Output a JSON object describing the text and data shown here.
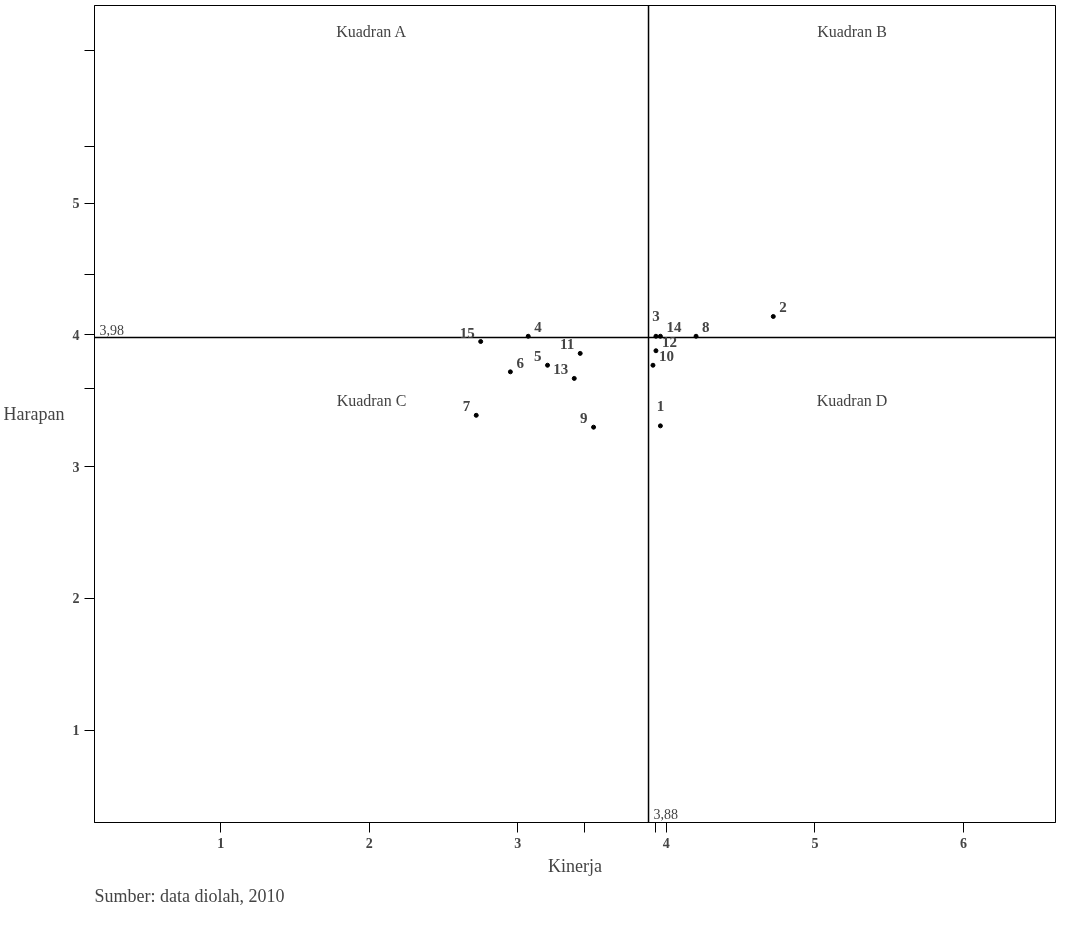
{
  "chart_data": {
    "type": "scatter",
    "xlabel": "Kinerja",
    "ylabel": "Harapan",
    "x": [
      3.96,
      4.72,
      3.93,
      3.07,
      3.2,
      2.95,
      2.72,
      4.2,
      3.51,
      3.91,
      3.42,
      3.93,
      3.38,
      3.96,
      2.75
    ],
    "series": [
      {
        "color": "#000000",
        "values": [
          3.31,
          4.14,
          3.99,
          3.99,
          3.77,
          3.72,
          3.39,
          3.99,
          3.3,
          3.77,
          3.86,
          3.88,
          3.67,
          3.99,
          3.95
        ]
      }
    ],
    "marker": "circle",
    "xlim": [
      0.15,
      6.62
    ],
    "ylim": [
      0.3,
      6.5
    ],
    "xticks": [
      1,
      2,
      3,
      {
        "value": 3.45,
        "label": null
      },
      {
        "value": 3.93,
        "label": null
      },
      4,
      5,
      6
    ],
    "yticks": [
      1,
      2,
      3,
      {
        "value": 3.595,
        "label": null
      },
      4,
      {
        "value": 4.46,
        "label": null
      },
      5,
      {
        "value": 5.43,
        "label": null
      },
      {
        "value": 6.16,
        "label": null
      }
    ],
    "grid": false,
    "ref_lines": [
      {
        "axis": "x",
        "value": 3.88,
        "label": "3,88"
      },
      {
        "axis": "y",
        "value": 3.98,
        "label": "3,98"
      }
    ],
    "annotations": [
      "Kuadran A",
      "Kuadran B",
      "Kuadran C",
      "Kuadran D",
      "Sumber: data diolah, 2010",
      {
        "text": "1",
        "x": 3.96,
        "y": 3.31
      },
      {
        "text": "2",
        "x": 4.72,
        "y": 4.14
      },
      {
        "text": "3",
        "x": 3.93,
        "y": 3.99
      },
      {
        "text": "4",
        "x": 3.07,
        "y": 3.99
      },
      {
        "text": "5",
        "x": 3.2,
        "y": 3.77
      },
      {
        "text": "6",
        "x": 2.95,
        "y": 3.72
      },
      {
        "text": "7",
        "x": 2.72,
        "y": 3.39
      },
      {
        "text": "8",
        "x": 4.2,
        "y": 3.99
      },
      {
        "text": "9",
        "x": 3.51,
        "y": 3.3
      },
      {
        "text": "10",
        "x": 3.91,
        "y": 3.77
      },
      {
        "text": "11",
        "x": 3.42,
        "y": 3.86
      },
      {
        "text": "12",
        "x": 3.93,
        "y": 3.88
      },
      {
        "text": "13",
        "x": 3.38,
        "y": 3.67
      },
      {
        "text": "14",
        "x": 3.96,
        "y": 3.99
      },
      {
        "text": "15",
        "x": 2.75,
        "y": 3.95
      }
    ]
  }
}
